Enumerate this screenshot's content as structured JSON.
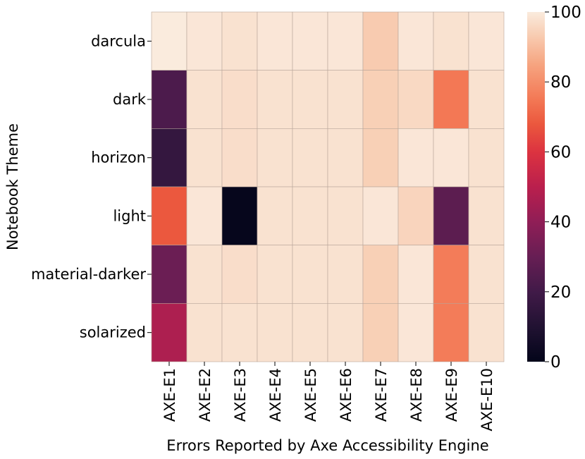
{
  "chart_data": {
    "type": "heatmap",
    "xlabel": "Errors Reported by Axe Accessibility Engine",
    "ylabel": "Notebook Theme",
    "x_categories": [
      "AXE-E1",
      "AXE-E2",
      "AXE-E3",
      "AXE-E4",
      "AXE-E5",
      "AXE-E6",
      "AXE-E7",
      "AXE-E8",
      "AXE-E9",
      "AXE-E10"
    ],
    "y_categories": [
      "darcula",
      "dark",
      "horizon",
      "light",
      "material-darker",
      "solarized"
    ],
    "values": [
      [
        100,
        99,
        98,
        99,
        99,
        99,
        93,
        99,
        98,
        99
      ],
      [
        23,
        98,
        97,
        98,
        98,
        98,
        94,
        96,
        75,
        98
      ],
      [
        16,
        98,
        97,
        98,
        98,
        98,
        94,
        99,
        99,
        98
      ],
      [
        68,
        99,
        1,
        98,
        98,
        98,
        99,
        95,
        27,
        98
      ],
      [
        31,
        98,
        97,
        98,
        98,
        98,
        94,
        99,
        76,
        98
      ],
      [
        47,
        98,
        98,
        98,
        98,
        98,
        94,
        99,
        76,
        98
      ]
    ],
    "color_scale": {
      "min": 0,
      "max": 100,
      "ticks": [
        0,
        20,
        40,
        60,
        80,
        100
      ],
      "colormap": "rocket"
    },
    "grid": false,
    "colorbar": "right"
  }
}
